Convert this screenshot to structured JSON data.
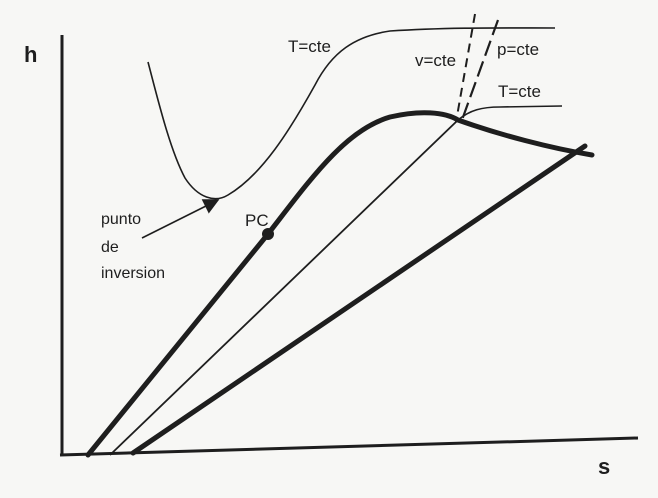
{
  "axes": {
    "y_label": "h",
    "x_label": "s"
  },
  "labels": {
    "t_cte_upper": "T=cte",
    "v_cte": "v=cte",
    "p_cte": "p=cte",
    "t_cte_lower": "T=cte",
    "critical_point": "PC",
    "inversion_line1": "punto",
    "inversion_line2": "de",
    "inversion_line3": "inversion"
  },
  "colors": {
    "ink": "#1e1e1e",
    "background": "#f7f7f5"
  }
}
